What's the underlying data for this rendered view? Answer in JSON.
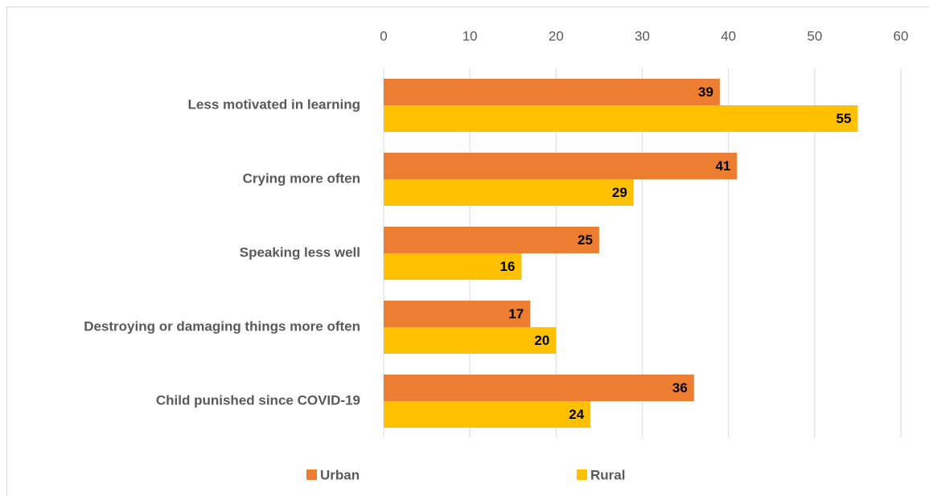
{
  "chart_data": {
    "type": "bar",
    "orientation": "horizontal",
    "categories": [
      "Less motivated in learning",
      "Crying more often",
      "Speaking less well",
      "Destroying or damaging things more often",
      "Child punished since COVID-19"
    ],
    "series": [
      {
        "name": "Urban",
        "color": "#ed7d31",
        "values": [
          39,
          41,
          25,
          17,
          36
        ]
      },
      {
        "name": "Rural",
        "color": "#ffc000",
        "values": [
          55,
          29,
          16,
          20,
          24
        ]
      }
    ],
    "xlim": [
      0,
      60
    ],
    "xticks": [
      0,
      10,
      20,
      30,
      40,
      50,
      60
    ],
    "grid": true,
    "legend": "bottom"
  }
}
